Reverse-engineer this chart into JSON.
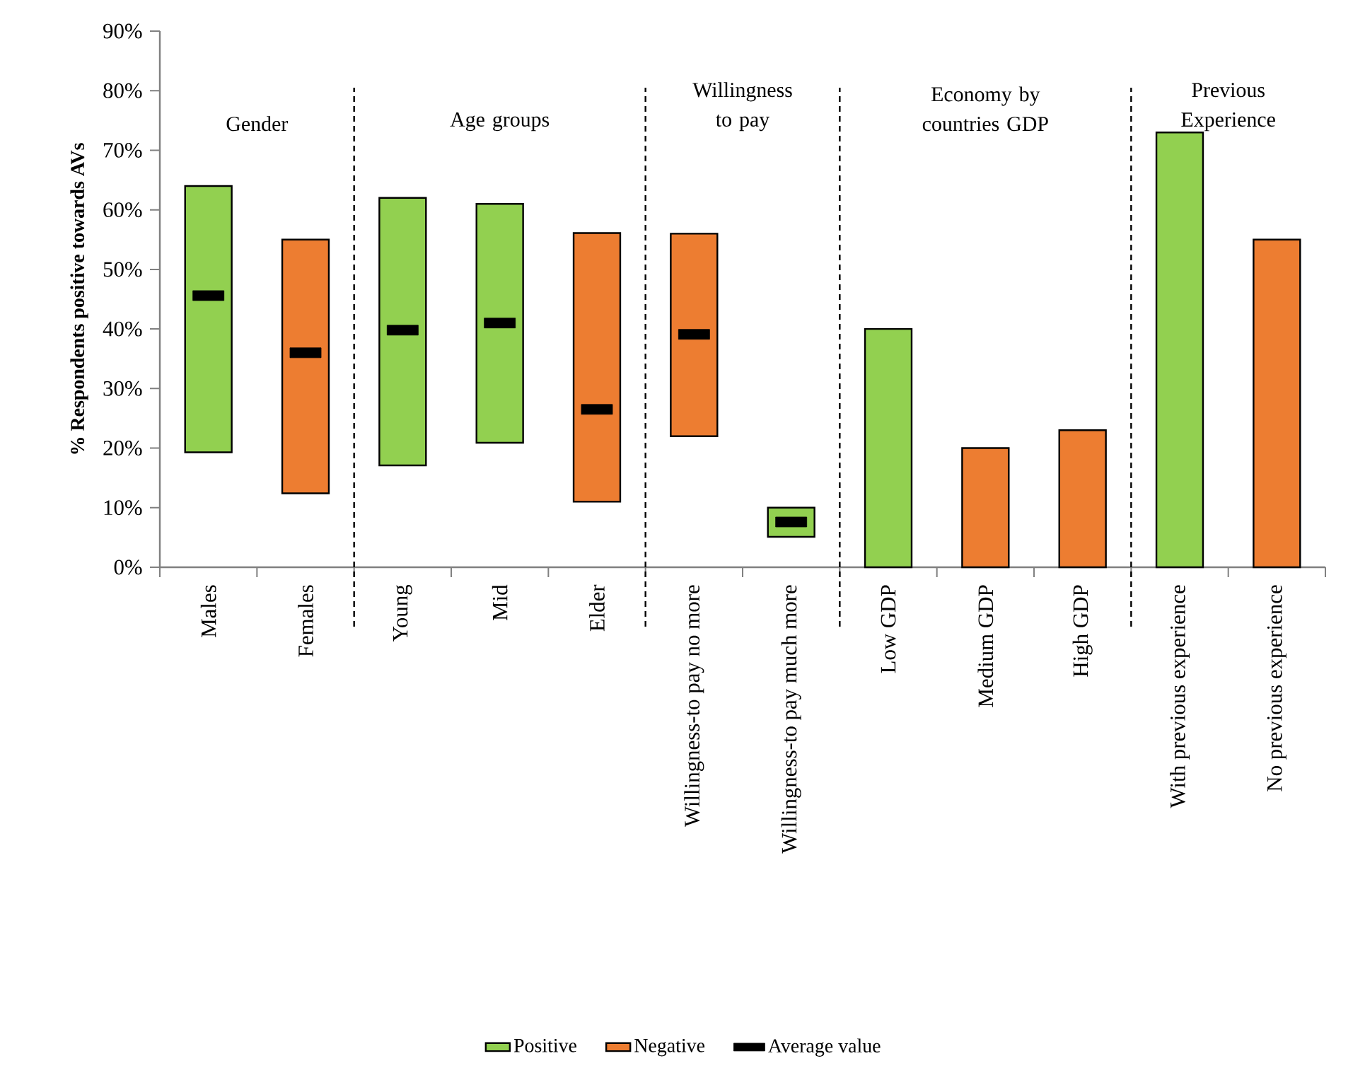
{
  "chart_data": {
    "type": "bar",
    "ylabel": "% Respondents positive towards AVs",
    "categories": [
      "Males",
      "Females",
      "Young",
      "Mid",
      "Elder",
      "Willingness-to pay no more",
      "Willingness-to pay much more",
      "Low GDP",
      "Medium GDP",
      "High GDP",
      "With previous experience",
      "No previous experience"
    ],
    "series": [
      {
        "name": "Positive",
        "color": "#92d050",
        "values": [
          44.7,
          null,
          44.9,
          40.1,
          null,
          null,
          4.9,
          40,
          null,
          null,
          73,
          null
        ],
        "base": [
          19.3,
          null,
          17.1,
          20.9,
          null,
          null,
          5.1,
          0,
          null,
          null,
          0,
          null
        ]
      },
      {
        "name": "Negative",
        "color": "#ed7d31",
        "values": [
          null,
          42.6,
          null,
          null,
          45.1,
          34,
          null,
          null,
          20,
          23,
          null,
          55
        ],
        "base": [
          null,
          12.4,
          null,
          null,
          11.0,
          22,
          null,
          null,
          0,
          0,
          null,
          0
        ]
      },
      {
        "name": "Average value",
        "type": "scatter",
        "color": "#000000",
        "values": [
          45.6,
          36.0,
          39.8,
          41.0,
          26.5,
          39.1,
          7.6,
          null,
          null,
          null,
          null,
          null
        ]
      }
    ],
    "ylim": [
      0,
      90
    ],
    "yticks": [
      {
        "value": 0,
        "label": "0%"
      },
      {
        "value": 10,
        "label": "10%"
      },
      {
        "value": 20,
        "label": "20%"
      },
      {
        "value": 30,
        "label": "30%"
      },
      {
        "value": 40,
        "label": "40%"
      },
      {
        "value": 50,
        "label": "50%"
      },
      {
        "value": 60,
        "label": "60%"
      },
      {
        "value": 70,
        "label": "70%"
      },
      {
        "value": 80,
        "label": "80%"
      },
      {
        "value": 90,
        "label": "90%"
      }
    ],
    "annotations": [
      "Gender",
      "Age groups",
      "Willingness to pay",
      "Economy by countries GDP",
      "Previous Experience"
    ],
    "legend": "bottom"
  }
}
